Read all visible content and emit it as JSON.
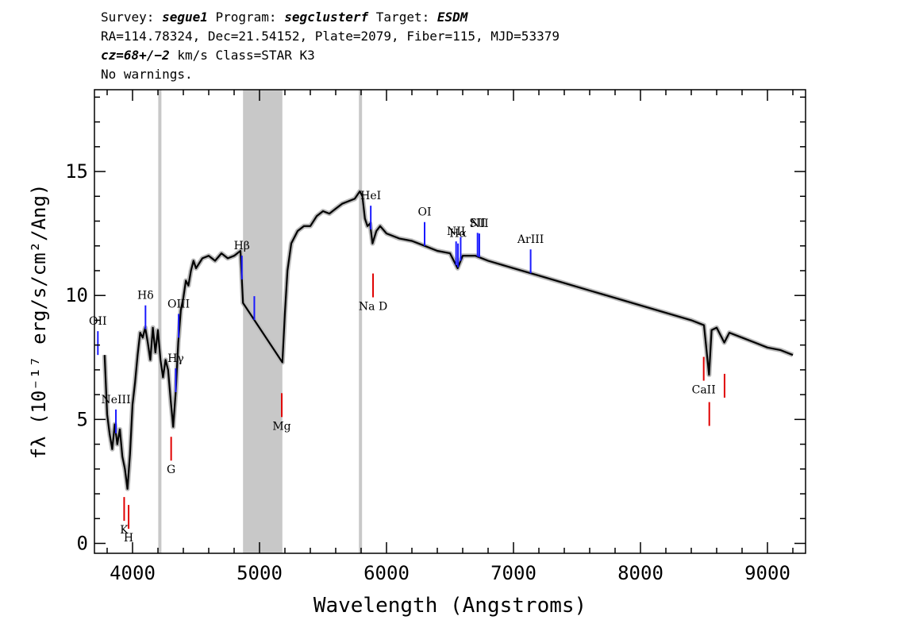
{
  "header": {
    "line1": {
      "survey_label": "Survey: ",
      "survey": "segue1",
      "program_label": " Program: ",
      "program": "segclusterf",
      "target_label": " Target: ",
      "target": "ESDM"
    },
    "line2": "RA=114.78324, Dec=21.54152, Plate=2079, Fiber=115, MJD=53379",
    "line3": {
      "cz": "cz=68+/−2",
      "rest": " km/s Class=STAR K3"
    },
    "line4": "No warnings."
  },
  "chart_data": {
    "type": "line",
    "xlabel": "Wavelength (Angstroms)",
    "ylabel": "fλ (10⁻¹⁷ erg/s/cm²/Ang)",
    "xlim": [
      3700,
      9300
    ],
    "ylim": [
      -0.4,
      18.3
    ],
    "x_ticks": [
      4000,
      5000,
      6000,
      7000,
      8000,
      9000
    ],
    "y_ticks": [
      0,
      5,
      10,
      15
    ],
    "masked_regions": [
      [
        4870,
        5180
      ]
    ],
    "masked_lines": [
      4215,
      5795
    ],
    "series": [
      {
        "color": "#000000",
        "x": [
          3780,
          3800,
          3820,
          3840,
          3860,
          3880,
          3900,
          3920,
          3940,
          3960,
          3980,
          4000,
          4020,
          4040,
          4060,
          4080,
          4100,
          4120,
          4140,
          4160,
          4180,
          4200,
          4220,
          4240,
          4260,
          4280,
          4300,
          4320,
          4340,
          4360,
          4380,
          4400,
          4420,
          4440,
          4460,
          4480,
          4500,
          4550,
          4600,
          4650,
          4700,
          4750,
          4800,
          4850,
          4870,
          5180,
          5200,
          5220,
          5250,
          5300,
          5350,
          5400,
          5450,
          5500,
          5550,
          5600,
          5650,
          5700,
          5750,
          5790,
          5810,
          5830,
          5850,
          5870,
          5890,
          5920,
          5950,
          6000,
          6100,
          6200,
          6300,
          6400,
          6500,
          6560,
          6600,
          6700,
          6800,
          7000,
          7200,
          7400,
          7600,
          7800,
          8000,
          8200,
          8400,
          8500,
          8540,
          8560,
          8600,
          8660,
          8700,
          8800,
          8900,
          9000,
          9100,
          9200
        ],
        "y": [
          7.6,
          5.2,
          4.4,
          3.8,
          4.8,
          4.0,
          4.6,
          3.5,
          3.0,
          2.2,
          3.6,
          5.6,
          6.5,
          7.6,
          8.5,
          8.3,
          8.7,
          8.1,
          7.4,
          8.7,
          7.7,
          8.6,
          7.4,
          6.7,
          7.4,
          7.0,
          5.8,
          4.7,
          6.1,
          8.1,
          9.4,
          9.9,
          10.6,
          10.4,
          11.0,
          11.4,
          11.1,
          11.5,
          11.6,
          11.4,
          11.7,
          11.5,
          11.6,
          11.8,
          9.7,
          7.3,
          9.3,
          11.0,
          12.1,
          12.6,
          12.8,
          12.8,
          13.2,
          13.4,
          13.3,
          13.5,
          13.7,
          13.8,
          13.9,
          14.2,
          14.0,
          13.1,
          12.8,
          12.9,
          12.1,
          12.6,
          12.8,
          12.5,
          12.3,
          12.2,
          12.0,
          11.8,
          11.7,
          11.1,
          11.6,
          11.6,
          11.4,
          11.1,
          10.8,
          10.5,
          10.2,
          9.9,
          9.6,
          9.3,
          9.0,
          8.8,
          6.8,
          8.6,
          8.7,
          8.1,
          8.5,
          8.3,
          8.1,
          7.9,
          7.8,
          7.6
        ]
      }
    ],
    "line_markers": {
      "emission": [
        {
          "label": "OII",
          "x": 3727
        },
        {
          "label": "NeIII",
          "x": 3869
        },
        {
          "label": "Hδ",
          "x": 4102
        },
        {
          "label": "Hγ",
          "x": 4340
        },
        {
          "label": "OIII",
          "x": 4363
        },
        {
          "label": "Hβ",
          "x": 4861
        },
        {
          "label": "",
          "x": 4959
        },
        {
          "label": "HeI",
          "x": 5876
        },
        {
          "label": "OI",
          "x": 6300
        },
        {
          "label": "NII",
          "x": 6548
        },
        {
          "label": "Hα",
          "x": 6563
        },
        {
          "label": "",
          "x": 6584
        },
        {
          "label": "SII",
          "x": 6717
        },
        {
          "label": "NII",
          "x": 6731
        },
        {
          "label": "ArIII",
          "x": 7135
        }
      ],
      "absorption": [
        {
          "label": "K",
          "x": 3934
        },
        {
          "label": "H",
          "x": 3969
        },
        {
          "label": "G",
          "x": 4304
        },
        {
          "label": "Mg",
          "x": 5175
        },
        {
          "label": "Na D",
          "x": 5894
        },
        {
          "label": "CaII",
          "x": 8498
        },
        {
          "label": "",
          "x": 8542
        },
        {
          "label": "",
          "x": 8662
        }
      ]
    }
  }
}
